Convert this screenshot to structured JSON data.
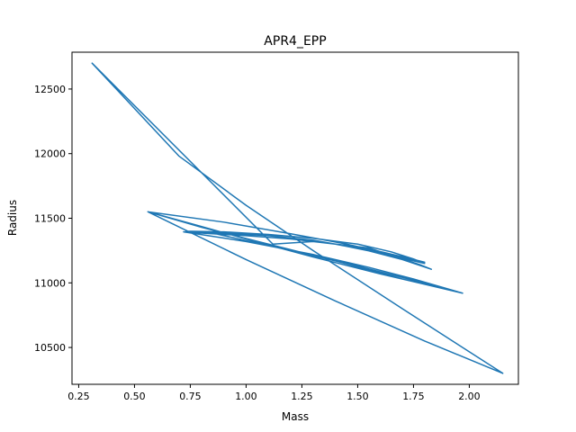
{
  "chart_data": {
    "type": "line",
    "title": "APR4_EPP",
    "xlabel": "Mass",
    "ylabel": "Radius",
    "xlim": [
      0.22,
      2.22
    ],
    "ylim": [
      10215,
      12785
    ],
    "xticks": [
      {
        "value": 0.25,
        "label": "0.25"
      },
      {
        "value": 0.5,
        "label": "0.50"
      },
      {
        "value": 0.75,
        "label": "0.75"
      },
      {
        "value": 1.0,
        "label": "1.00"
      },
      {
        "value": 1.25,
        "label": "1.25"
      },
      {
        "value": 1.5,
        "label": "1.50"
      },
      {
        "value": 1.75,
        "label": "1.75"
      },
      {
        "value": 2.0,
        "label": "2.00"
      }
    ],
    "yticks": [
      {
        "value": 10500,
        "label": "10500"
      },
      {
        "value": 11000,
        "label": "11000"
      },
      {
        "value": 11500,
        "label": "11500"
      },
      {
        "value": 12000,
        "label": "12000"
      },
      {
        "value": 12500,
        "label": "12500"
      }
    ],
    "grid": false,
    "series": [
      {
        "color": "#1f77b4",
        "x": [
          0.31,
          1.12,
          1.3,
          1.45,
          1.55,
          1.62,
          1.7,
          1.78,
          1.83,
          1.7,
          1.5,
          1.3,
          1.1,
          0.9,
          0.73,
          0.9,
          1.1,
          1.3,
          1.5,
          1.65,
          1.75,
          1.8,
          1.6,
          1.4,
          1.2,
          1.0,
          0.8,
          0.72,
          1.0,
          1.3,
          1.55,
          1.75,
          1.97,
          1.7,
          1.4,
          1.1,
          0.8,
          0.56,
          0.9,
          1.2,
          1.45,
          1.62,
          1.73,
          1.8,
          1.6,
          1.4,
          1.2,
          1.0,
          0.85,
          1.2,
          1.5,
          1.75,
          1.96,
          1.6,
          1.3,
          1.0,
          0.75,
          0.56,
          1.0,
          1.4,
          1.8,
          2.15,
          1.7,
          1.3,
          1.0,
          0.7,
          0.31
        ],
        "y": [
          12700,
          11300,
          11320,
          11290,
          11270,
          11230,
          11185,
          11140,
          11105,
          11180,
          11270,
          11330,
          11365,
          11385,
          11400,
          11395,
          11375,
          11345,
          11300,
          11240,
          11185,
          11150,
          11230,
          11300,
          11340,
          11365,
          11385,
          11395,
          11320,
          11220,
          11120,
          11030,
          10920,
          11030,
          11170,
          11300,
          11430,
          11550,
          11470,
          11380,
          11300,
          11235,
          11190,
          11160,
          11240,
          11300,
          11340,
          11365,
          11385,
          11250,
          11130,
          11020,
          10925,
          11070,
          11200,
          11340,
          11460,
          11550,
          11180,
          10860,
          10550,
          10300,
          10800,
          11250,
          11600,
          11980,
          12700
        ]
      }
    ]
  }
}
